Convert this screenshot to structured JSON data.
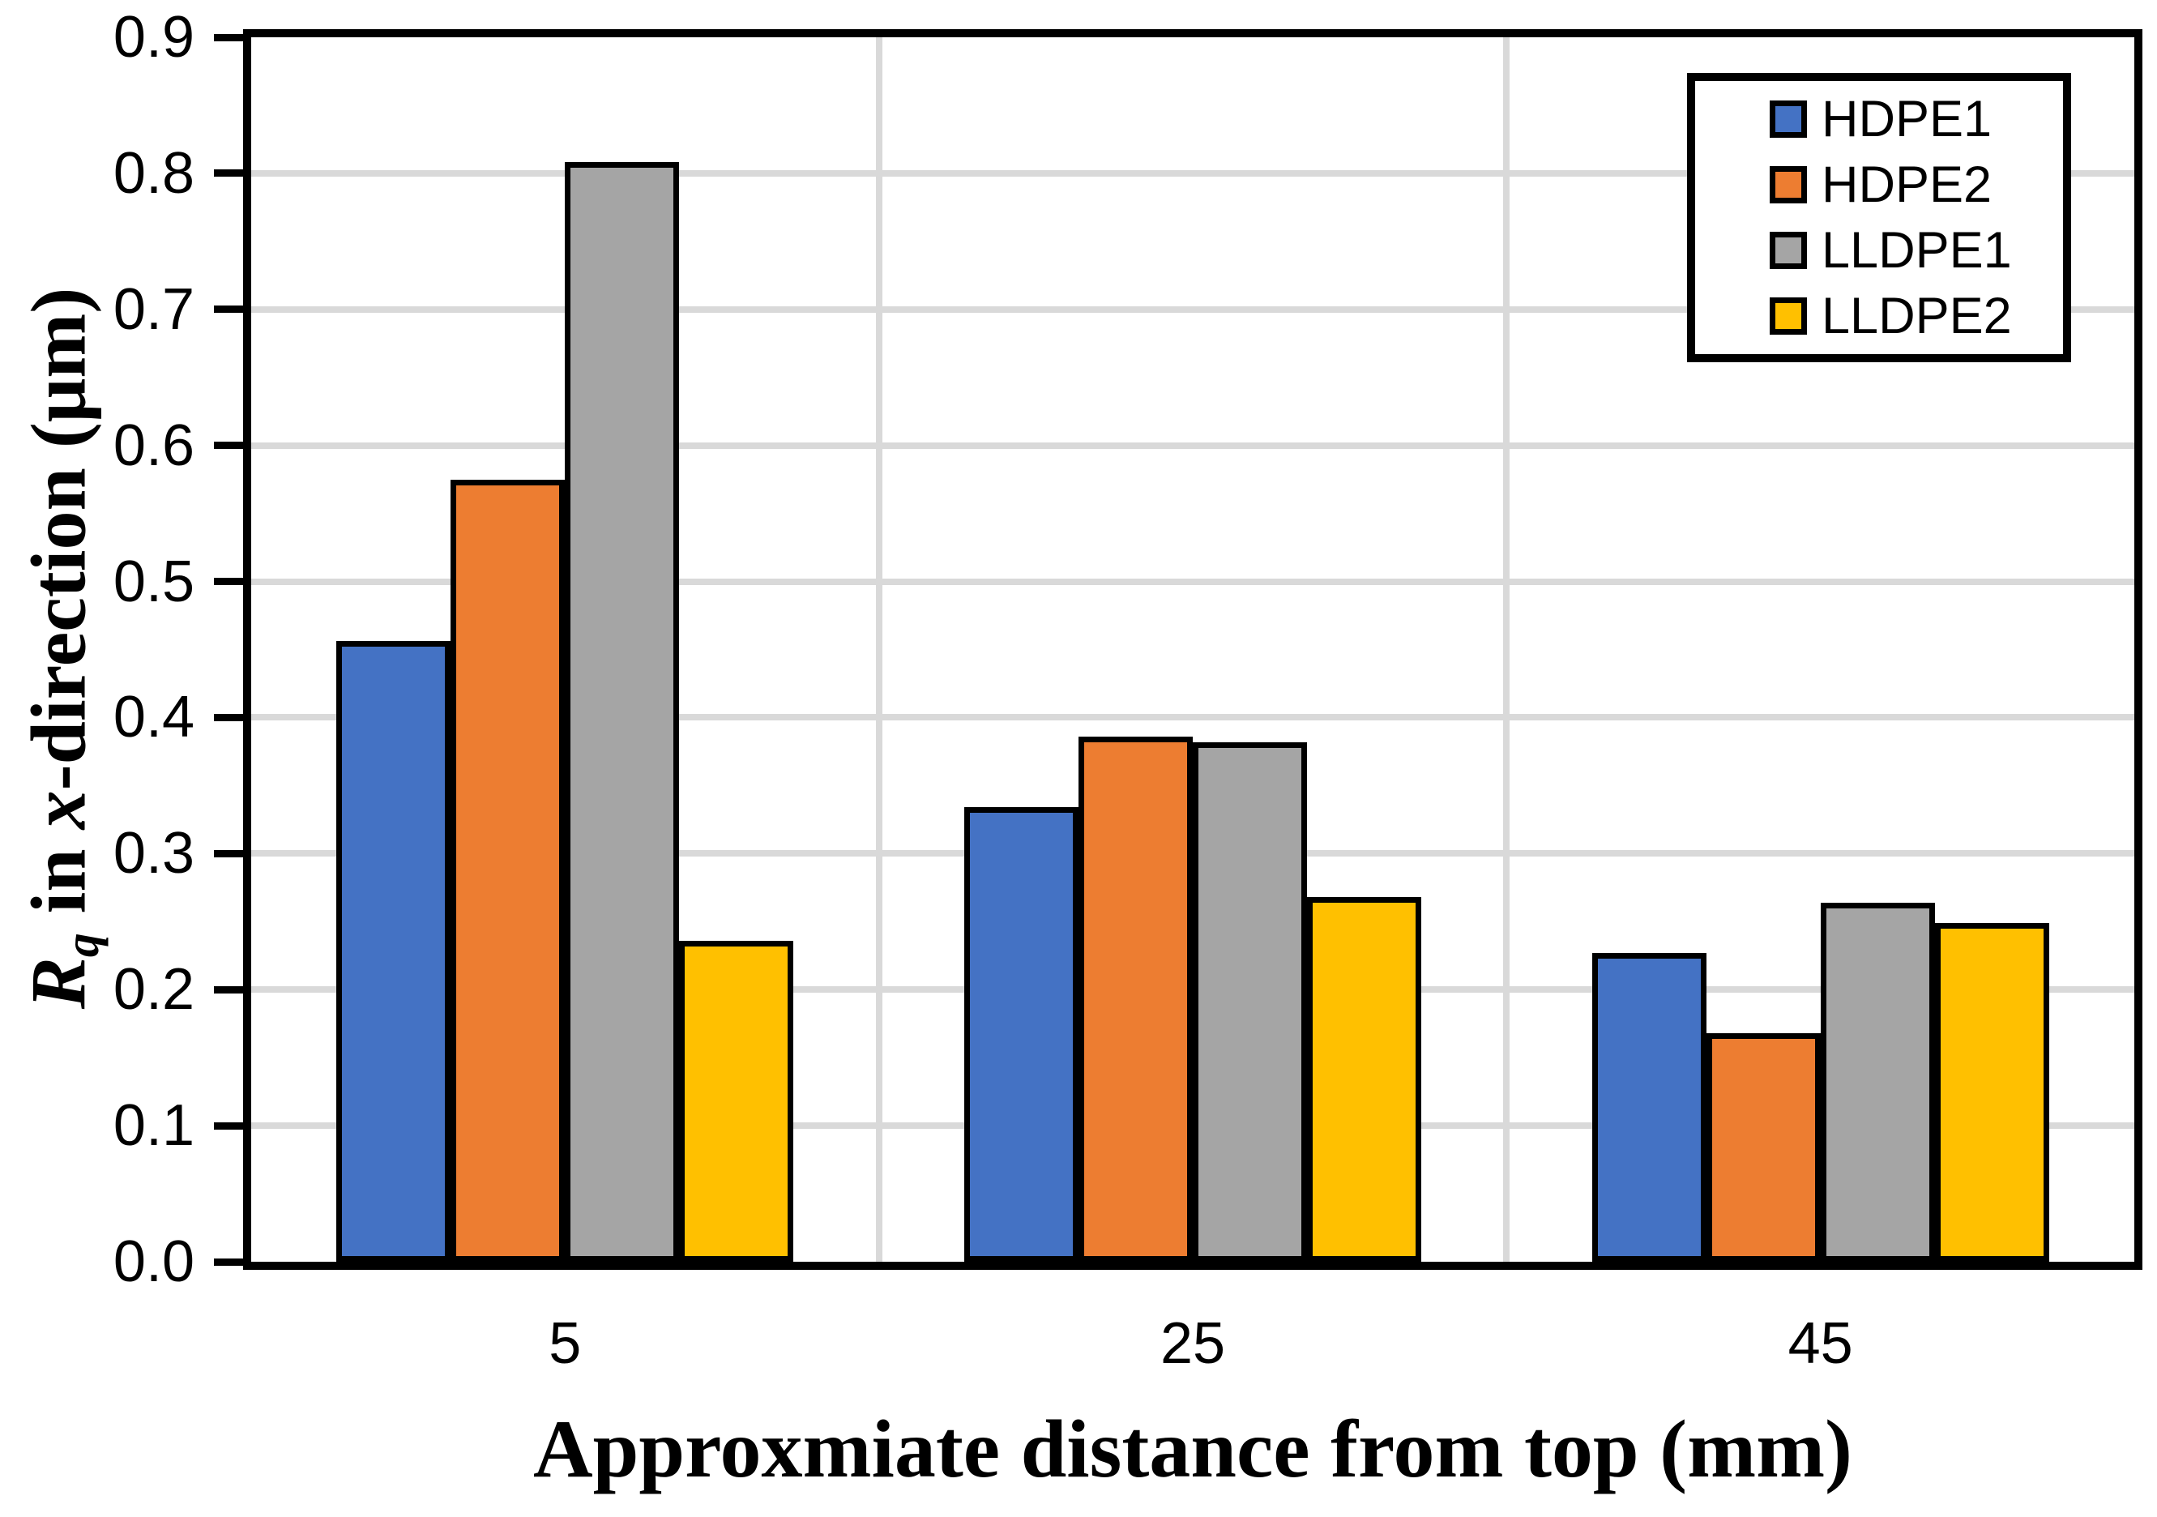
{
  "chart_data": {
    "type": "bar",
    "title": "",
    "xlabel": "Approxmiate distance from top (mm)",
    "ylabel_plain": "Rq in x-direction (μm)",
    "ylabel_parts": [
      {
        "text": "R",
        "style": "italic"
      },
      {
        "text": "q",
        "style": "subscript-italic"
      },
      {
        "text": " in ",
        "style": "normal"
      },
      {
        "text": "x",
        "style": "italic"
      },
      {
        "text": "-direction (μm)",
        "style": "normal"
      }
    ],
    "categories": [
      "5",
      "25",
      "45"
    ],
    "series": [
      {
        "name": "HDPE1",
        "color": "#4472C4",
        "values": [
          0.456,
          0.334,
          0.227
        ]
      },
      {
        "name": "HDPE2",
        "color": "#ED7D31",
        "values": [
          0.575,
          0.386,
          0.168
        ]
      },
      {
        "name": "LLDPE1",
        "color": "#A5A5A5",
        "values": [
          0.808,
          0.382,
          0.264
        ]
      },
      {
        "name": "LLDPE2",
        "color": "#FFC000",
        "values": [
          0.236,
          0.268,
          0.249
        ]
      }
    ],
    "ylim": [
      0.0,
      0.9
    ],
    "ytick_step": 0.1,
    "ytick_labels": [
      "0.0",
      "0.1",
      "0.2",
      "0.3",
      "0.4",
      "0.5",
      "0.6",
      "0.7",
      "0.8",
      "0.9"
    ],
    "grid": {
      "horizontal": true,
      "vertical_category_boundaries": true,
      "color": "#D9D9D9"
    },
    "legend": {
      "position": "top-right",
      "labels": [
        "HDPE1",
        "HDPE2",
        "LLDPE1",
        "LLDPE2"
      ]
    },
    "axis_color": "#000000",
    "bar_border_color": "#000000",
    "background_color": "#FFFFFF"
  }
}
